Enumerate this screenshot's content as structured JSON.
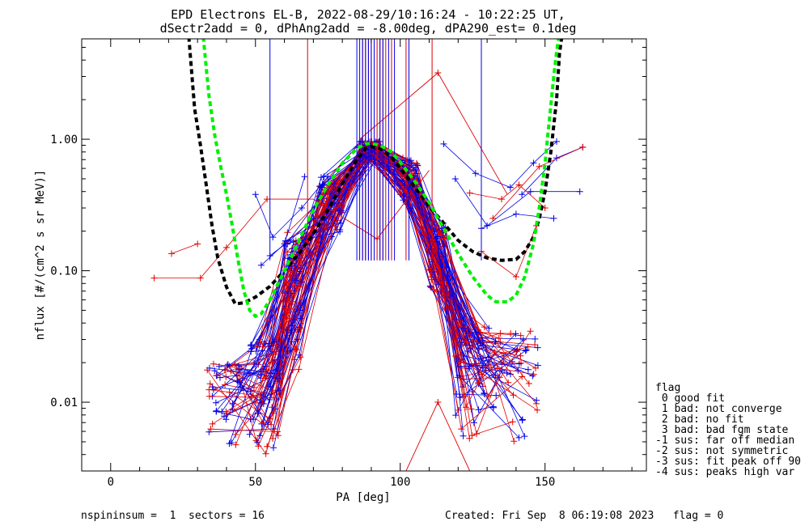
{
  "chart_data": {
    "type": "line",
    "title_line1": "EPD Electrons EL-B, 2022-08-29/10:16:24 - 10:22:25 UT,",
    "title_line2": "dSectr2add = 0, dPhAng2add = -8.00deg, dPA290_est=   0.1deg",
    "xlabel": "PA [deg]",
    "ylabel": "nflux [#/(cm^2 s sr MeV)]",
    "xlim": [
      -10,
      185
    ],
    "ylim": [
      0.003,
      5.8
    ],
    "yscale": "log",
    "x_ticks": [
      0,
      50,
      100,
      150
    ],
    "y_ticks": [
      {
        "value": 0.01,
        "label": "0.01"
      },
      {
        "value": 0.1,
        "label": "0.10"
      },
      {
        "value": 1.0,
        "label": "1.00"
      }
    ],
    "colors": {
      "red": "#e00000",
      "blue": "#0000e8",
      "black": "#000000",
      "green": "#00f000"
    },
    "black_fit": [
      [
        27,
        6
      ],
      [
        28,
        3.2
      ],
      [
        29,
        1.7
      ],
      [
        31,
        0.9
      ],
      [
        33,
        0.45
      ],
      [
        35,
        0.22
      ],
      [
        37,
        0.125
      ],
      [
        40,
        0.075
      ],
      [
        43,
        0.056
      ],
      [
        46,
        0.057
      ],
      [
        50,
        0.063
      ],
      [
        55,
        0.076
      ],
      [
        60,
        0.1
      ],
      [
        65,
        0.135
      ],
      [
        70,
        0.19
      ],
      [
        75,
        0.29
      ],
      [
        80,
        0.46
      ],
      [
        85,
        0.7
      ],
      [
        88,
        0.85
      ],
      [
        90,
        0.88
      ],
      [
        93,
        0.85
      ],
      [
        97,
        0.73
      ],
      [
        100,
        0.6
      ],
      [
        105,
        0.43
      ],
      [
        110,
        0.31
      ],
      [
        115,
        0.23
      ],
      [
        120,
        0.17
      ],
      [
        125,
        0.14
      ],
      [
        130,
        0.125
      ],
      [
        135,
        0.12
      ],
      [
        140,
        0.122
      ],
      [
        143,
        0.14
      ],
      [
        146,
        0.18
      ],
      [
        148,
        0.25
      ],
      [
        150,
        0.4
      ],
      [
        152,
        0.8
      ],
      [
        154,
        2.0
      ],
      [
        155,
        4.5
      ],
      [
        156,
        6.5
      ]
    ],
    "green_fit": [
      [
        32,
        6
      ],
      [
        33,
        3.5
      ],
      [
        34,
        2.1
      ],
      [
        36,
        1.05
      ],
      [
        38,
        0.62
      ],
      [
        40,
        0.38
      ],
      [
        42,
        0.22
      ],
      [
        44,
        0.12
      ],
      [
        46,
        0.07
      ],
      [
        48,
        0.05
      ],
      [
        50,
        0.045
      ],
      [
        52,
        0.047
      ],
      [
        55,
        0.06
      ],
      [
        60,
        0.1
      ],
      [
        65,
        0.17
      ],
      [
        70,
        0.29
      ],
      [
        75,
        0.45
      ],
      [
        80,
        0.66
      ],
      [
        85,
        0.85
      ],
      [
        88,
        0.92
      ],
      [
        90,
        0.93
      ],
      [
        93,
        0.9
      ],
      [
        97,
        0.8
      ],
      [
        100,
        0.67
      ],
      [
        105,
        0.48
      ],
      [
        110,
        0.33
      ],
      [
        115,
        0.21
      ],
      [
        120,
        0.135
      ],
      [
        125,
        0.09
      ],
      [
        130,
        0.065
      ],
      [
        133,
        0.058
      ],
      [
        137,
        0.058
      ],
      [
        140,
        0.065
      ],
      [
        143,
        0.09
      ],
      [
        146,
        0.16
      ],
      [
        148,
        0.3
      ],
      [
        150,
        0.65
      ],
      [
        151,
        1.1
      ],
      [
        152,
        1.8
      ],
      [
        153,
        3.0
      ],
      [
        154,
        4.6
      ],
      [
        155,
        6.5
      ]
    ],
    "flag_lines": {
      "red": [
        68,
        87,
        88,
        89,
        90,
        91,
        92,
        93,
        94,
        95,
        97,
        102,
        111
      ],
      "blue": [
        55,
        85,
        86,
        87,
        88,
        89,
        90,
        91,
        93,
        94,
        96,
        98,
        103,
        128
      ]
    },
    "flag_line_bottom": 0.12,
    "spike_markers": [
      {
        "x": 113,
        "y": 3.2
      },
      {
        "x": 113,
        "y": 0.01
      },
      {
        "x": 92,
        "y": 0.175
      }
    ],
    "spike_lines": [
      [
        [
          86,
          1.0
        ],
        [
          113,
          3.2
        ],
        [
          137,
          0.38
        ]
      ],
      [
        [
          102,
          0.003
        ],
        [
          113,
          0.01
        ],
        [
          124,
          0.003
        ]
      ],
      [
        [
          54,
          0.35
        ],
        [
          70,
          0.35
        ],
        [
          92,
          0.175
        ],
        [
          110,
          0.58
        ]
      ]
    ],
    "legend": {
      "title": "flag",
      "items": [
        " 0 good fit",
        " 1 bad: not converge",
        " 2 bad: no fit",
        " 3 bad: bad fgm state",
        "-1 sus: far off median",
        "-2 sus: not symmetric",
        "-3 sus: fit peak off 90",
        "-4 sus: peaks high var"
      ]
    },
    "footer_left": "nspininsum =  1  sectors = 16",
    "footer_right": "Created: Fri Sep  8 06:19:08 2023   flag = 0"
  }
}
